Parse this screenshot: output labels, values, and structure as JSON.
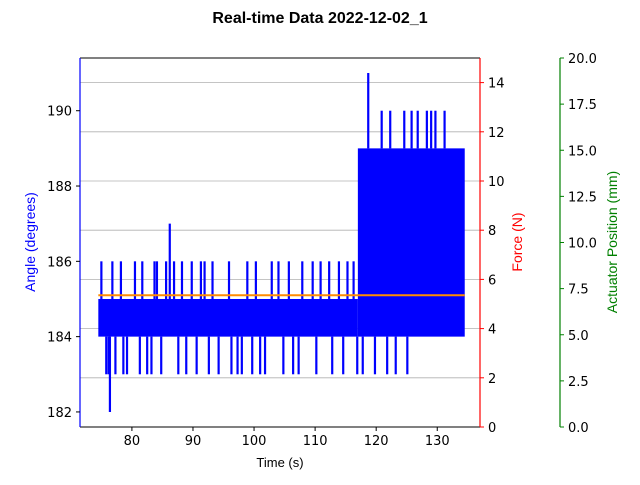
{
  "chart_data": {
    "type": "line",
    "title": "Real-time Data 2022-12-02_1",
    "xlabel": "Time (s)",
    "xlim": [
      71.5,
      137
    ],
    "xticks": [
      80,
      90,
      100,
      110,
      120,
      130
    ],
    "grid": "horizontal",
    "axes": {
      "angle": {
        "label": "Angle (degrees)",
        "color": "#0000ff",
        "ylim": [
          181.6,
          191.4
        ],
        "ticks": [
          182,
          184,
          186,
          188,
          190
        ]
      },
      "force": {
        "label": "Force (N)",
        "color": "#ff0000",
        "ylim": [
          0,
          15
        ],
        "ticks": [
          0,
          2,
          4,
          6,
          8,
          10,
          12,
          14
        ]
      },
      "actuator": {
        "label": "Actuator Position (mm)",
        "color": "#008000",
        "ylim": [
          0,
          20
        ],
        "ticks": [
          "0.0",
          "2.5",
          "5.0",
          "7.5",
          "10.0",
          "12.5",
          "15.0",
          "17.5",
          "20.0"
        ]
      }
    },
    "series": [
      {
        "axis": "angle",
        "color": "#0000ff",
        "band_segments": [
          {
            "x_start": 74.5,
            "x_end": 117,
            "y_low": 184,
            "y_high": 185
          },
          {
            "x_start": 117,
            "x_end": 134.5,
            "y_low": 184,
            "y_high": 189
          }
        ],
        "spikes": [
          {
            "x": 75.0,
            "y": 186
          },
          {
            "x": 75.8,
            "y": 183
          },
          {
            "x": 76.2,
            "y": 183
          },
          {
            "x": 76.4,
            "y": 182
          },
          {
            "x": 76.8,
            "y": 186
          },
          {
            "x": 77.3,
            "y": 183
          },
          {
            "x": 78.2,
            "y": 186
          },
          {
            "x": 78.6,
            "y": 183
          },
          {
            "x": 79.2,
            "y": 183
          },
          {
            "x": 80.5,
            "y": 186
          },
          {
            "x": 81.3,
            "y": 183
          },
          {
            "x": 81.7,
            "y": 186
          },
          {
            "x": 82.5,
            "y": 183
          },
          {
            "x": 83.2,
            "y": 183
          },
          {
            "x": 83.7,
            "y": 186
          },
          {
            "x": 84.1,
            "y": 186
          },
          {
            "x": 84.8,
            "y": 183
          },
          {
            "x": 85.6,
            "y": 186
          },
          {
            "x": 86.2,
            "y": 187
          },
          {
            "x": 86.9,
            "y": 186
          },
          {
            "x": 87.6,
            "y": 183
          },
          {
            "x": 88.2,
            "y": 186
          },
          {
            "x": 88.9,
            "y": 183
          },
          {
            "x": 89.8,
            "y": 186
          },
          {
            "x": 90.6,
            "y": 183
          },
          {
            "x": 91.3,
            "y": 186
          },
          {
            "x": 91.9,
            "y": 186
          },
          {
            "x": 92.6,
            "y": 183
          },
          {
            "x": 93.2,
            "y": 186
          },
          {
            "x": 94.2,
            "y": 183
          },
          {
            "x": 95.9,
            "y": 186
          },
          {
            "x": 96.3,
            "y": 183
          },
          {
            "x": 97.3,
            "y": 183
          },
          {
            "x": 98.0,
            "y": 183
          },
          {
            "x": 98.9,
            "y": 186
          },
          {
            "x": 99.7,
            "y": 183
          },
          {
            "x": 100.3,
            "y": 186
          },
          {
            "x": 101.0,
            "y": 183
          },
          {
            "x": 101.8,
            "y": 183
          },
          {
            "x": 102.9,
            "y": 186
          },
          {
            "x": 104.0,
            "y": 186
          },
          {
            "x": 104.8,
            "y": 183
          },
          {
            "x": 105.7,
            "y": 186
          },
          {
            "x": 106.4,
            "y": 183
          },
          {
            "x": 107.3,
            "y": 183
          },
          {
            "x": 107.9,
            "y": 186
          },
          {
            "x": 109.6,
            "y": 186
          },
          {
            "x": 110.2,
            "y": 183
          },
          {
            "x": 110.9,
            "y": 186
          },
          {
            "x": 112.3,
            "y": 186
          },
          {
            "x": 112.8,
            "y": 183
          },
          {
            "x": 113.9,
            "y": 186
          },
          {
            "x": 114.6,
            "y": 183
          },
          {
            "x": 115.3,
            "y": 186
          },
          {
            "x": 116.3,
            "y": 186
          },
          {
            "x": 116.9,
            "y": 183
          },
          {
            "x": 117.8,
            "y": 183
          },
          {
            "x": 118.7,
            "y": 191
          },
          {
            "x": 119.8,
            "y": 183
          },
          {
            "x": 120.9,
            "y": 190
          },
          {
            "x": 121.8,
            "y": 183
          },
          {
            "x": 122.3,
            "y": 190
          },
          {
            "x": 123.2,
            "y": 183
          },
          {
            "x": 124.6,
            "y": 190
          },
          {
            "x": 125.1,
            "y": 183
          },
          {
            "x": 125.8,
            "y": 190
          },
          {
            "x": 126.8,
            "y": 190
          },
          {
            "x": 128.3,
            "y": 190
          },
          {
            "x": 129.0,
            "y": 190
          },
          {
            "x": 129.7,
            "y": 190
          },
          {
            "x": 131.2,
            "y": 190
          }
        ]
      },
      {
        "axis": "angle",
        "color": "#ff8c00",
        "x": [
          74.5,
          134.5
        ],
        "y": [
          185.1,
          185.1
        ]
      }
    ]
  }
}
